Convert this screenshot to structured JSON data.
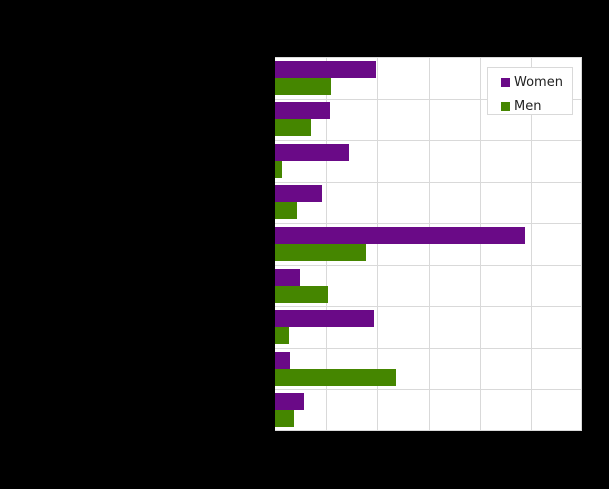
{
  "chart_data": {
    "type": "bar",
    "orientation": "horizontal",
    "title": "",
    "xlabel": "",
    "ylabel": "",
    "categories": [
      "",
      "",
      "",
      "",
      "",
      "",
      "",
      "",
      ""
    ],
    "series": [
      {
        "name": "Women",
        "color": "#6a0a87",
        "values": [
          1.97,
          1.07,
          1.45,
          0.92,
          4.88,
          0.49,
          1.93,
          0.29,
          0.57
        ]
      },
      {
        "name": "Men",
        "color": "#458600",
        "values": [
          1.09,
          0.7,
          0.14,
          0.43,
          1.78,
          1.04,
          0.27,
          2.36,
          0.37
        ]
      }
    ],
    "xlim": [
      0,
      6
    ],
    "x_gridlines": [
      0,
      1,
      2,
      3,
      4,
      5,
      6
    ],
    "grid": true,
    "legend_position": "top-right inside",
    "note": "Axis tick labels and category labels are not visible (rendered black on black); values are in gridline units."
  },
  "legend": {
    "items": [
      {
        "label": "Women",
        "color": "#6a0a87"
      },
      {
        "label": "Men",
        "color": "#458600"
      }
    ]
  },
  "colors": {
    "background": "#000000",
    "plot_background": "#ffffff",
    "grid": "#d9d9d9",
    "women": "#6a0a87",
    "men": "#458600"
  }
}
